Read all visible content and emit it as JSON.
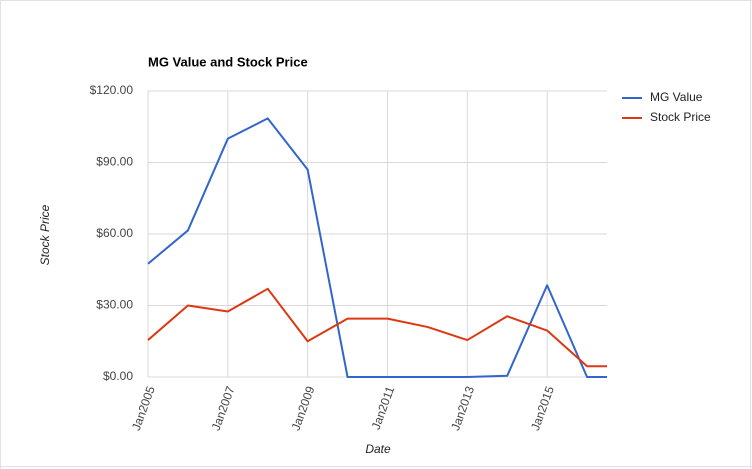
{
  "chart_data": {
    "type": "line",
    "title": "MG Value and Stock Price",
    "x_label": "Date",
    "y_label": "Stock Price",
    "x": [
      2005,
      2006,
      2007,
      2008,
      2009,
      2010,
      2011,
      2012,
      2013,
      2014,
      2015,
      2016,
      2016.5
    ],
    "series": [
      {
        "name": "MG Value",
        "color": "#3366cc",
        "values": [
          47.5,
          61.5,
          100,
          108.5,
          87,
          0,
          0,
          0,
          0,
          0.5,
          38.5,
          0,
          0
        ]
      },
      {
        "name": "Stock Price",
        "color": "#dc3912",
        "values": [
          15.5,
          30,
          27.5,
          37,
          15,
          24.5,
          24.5,
          21,
          15.5,
          25.5,
          19.5,
          4.5,
          4.5
        ]
      }
    ],
    "xlim": [
      2005,
      2016.5
    ],
    "xticks": [
      {
        "value": 2005,
        "label": "Jan2005"
      },
      {
        "value": 2007,
        "label": "Jan2007"
      },
      {
        "value": 2009,
        "label": "Jan2009"
      },
      {
        "value": 2011,
        "label": "Jan2011"
      },
      {
        "value": 2013,
        "label": "Jan2013"
      },
      {
        "value": 2015,
        "label": "Jan2015"
      }
    ],
    "ylim": [
      0,
      120
    ],
    "yticks": [
      {
        "value": 0,
        "label": "$0.00"
      },
      {
        "value": 30,
        "label": "$30.00"
      },
      {
        "value": 60,
        "label": "$60.00"
      },
      {
        "value": 90,
        "label": "$90.00"
      },
      {
        "value": 120,
        "label": "$120.00"
      }
    ],
    "grid": true,
    "legend": "right"
  }
}
